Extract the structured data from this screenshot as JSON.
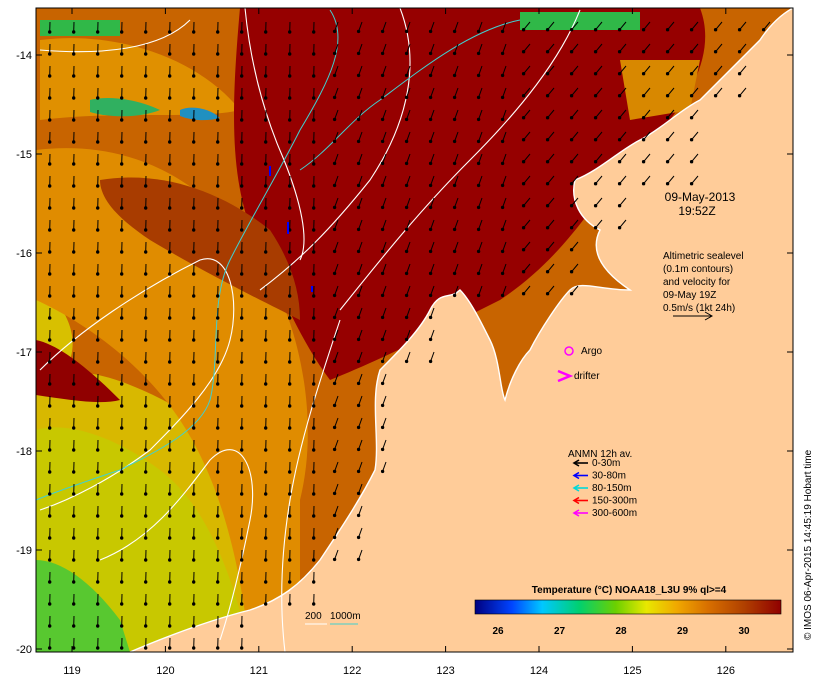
{
  "map": {
    "lon_ticks": [
      "119",
      "120",
      "121",
      "122",
      "123",
      "124",
      "125",
      "126"
    ],
    "lat_ticks": [
      "-14",
      "-15",
      "-16",
      "-17",
      "-18",
      "-19",
      "-20"
    ],
    "timestamp": {
      "date": "09-May-2013",
      "time": "19:52Z"
    },
    "altimetry_note": {
      "line1": "Altimetric sealevel",
      "line2": "(0.1m contours)",
      "line3": "and velocity for",
      "line4": "09-May 19Z",
      "line5": "0.5m/s (1kt 24h)"
    },
    "argo_label": "Argo",
    "drifter_label": "drifter",
    "anmn": {
      "title": "ANMN 12h av.",
      "items": [
        {
          "label": "0-30m",
          "color": "#000000"
        },
        {
          "label": "30-80m",
          "color": "#0000ff"
        },
        {
          "label": "80-150m",
          "color": "#00d8d8"
        },
        {
          "label": "150-300m",
          "color": "#ff0000"
        },
        {
          "label": "300-600m",
          "color": "#ff00ff"
        }
      ]
    },
    "depth_legend": {
      "label1": "200",
      "label2": "1000m"
    },
    "colorbar": {
      "title": "Temperature (°C) NOAA18_L3U 9% ql>=4",
      "ticks": [
        "26",
        "27",
        "28",
        "29",
        "30"
      ],
      "colors": [
        "#000080",
        "#0044ff",
        "#00c8ff",
        "#00d070",
        "#6cd000",
        "#e8e800",
        "#f0a800",
        "#d87000",
        "#b04000",
        "#900000"
      ]
    },
    "credit": "© IMOS 06-Apr-2015 14:45:19 Hobart time",
    "colors": {
      "land": "#ffcc99",
      "warm_core": "#960000",
      "sst_orange": "#c86400",
      "sst_amber": "#e08c00",
      "sst_yellow": "#d8c800",
      "sst_green": "#3cc83c",
      "contour": "#ffffff",
      "isobath": "#40d0d0"
    }
  }
}
